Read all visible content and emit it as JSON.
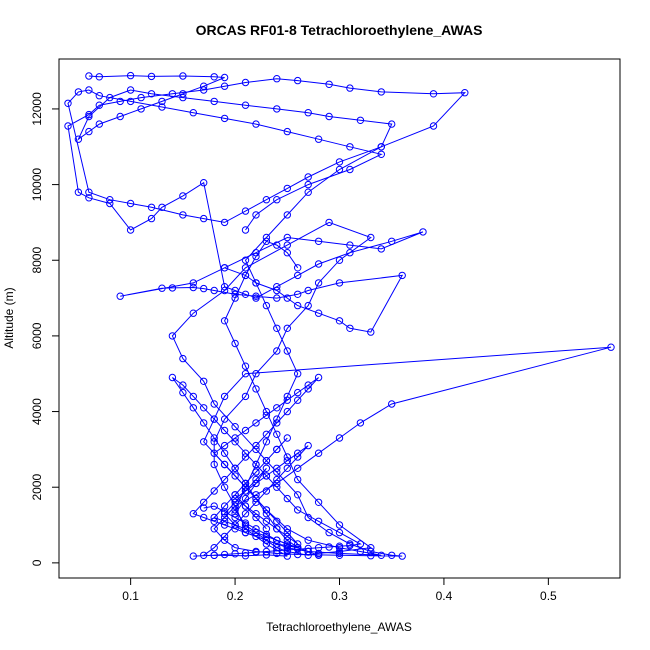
{
  "chart_data": {
    "type": "line",
    "title": "ORCAS RF01-8 Tetrachloroethylene_AWAS",
    "xlabel": "Tetrachloroethylene_AWAS",
    "ylabel": "Altitude (m)",
    "xlim": [
      0.0314,
      0.5686
    ],
    "ylim": [
      -400,
      13320
    ],
    "xticks": [
      0.1,
      0.2,
      0.3,
      0.4,
      0.5
    ],
    "xtick_labels": [
      "0.1",
      "0.2",
      "0.3",
      "0.4",
      "0.5"
    ],
    "yticks": [
      0,
      2000,
      4000,
      6000,
      8000,
      10000,
      12000
    ],
    "ytick_labels": [
      "0",
      "2000",
      "4000",
      "6000",
      "8000",
      "10000",
      "12000"
    ],
    "grid": false,
    "legend": "none",
    "color": "#0000ff",
    "marker": "open-circle",
    "series": [
      {
        "x": [
          0.16,
          0.18,
          0.21,
          0.23,
          0.25,
          0.23,
          0.21,
          0.2,
          0.19,
          0.18,
          0.18,
          0.19,
          0.21,
          0.22,
          0.24,
          0.25,
          0.27,
          0.28,
          0.3,
          0.33,
          0.29,
          0.25,
          0.21,
          0.19,
          0.16,
          0.14,
          0.15,
          0.17,
          0.18,
          0.2,
          0.22,
          0.24,
          0.26,
          0.27,
          0.29,
          0.31,
          0.33,
          0.35,
          0.36,
          0.33,
          0.3,
          0.28,
          0.26,
          0.24,
          0.22,
          0.2,
          0.19,
          0.18,
          0.19,
          0.2,
          0.22,
          0.24,
          0.26,
          0.28,
          0.3,
          0.32,
          0.35,
          0.56,
          0.21,
          0.19,
          0.18,
          0.17,
          0.19,
          0.21,
          0.23,
          0.25,
          0.27,
          0.3,
          0.32,
          0.34,
          0.3,
          0.27,
          0.25,
          0.23,
          0.21,
          0.2,
          0.19,
          0.2,
          0.21,
          0.22,
          0.23,
          0.22,
          0.21,
          0.2
        ],
        "y": [
          180,
          200,
          190,
          210,
          180,
          500,
          900,
          1500,
          2000,
          2600,
          3200,
          3800,
          4400,
          5000,
          5600,
          6200,
          6800,
          7400,
          8000,
          8600,
          9000,
          8400,
          7800,
          7200,
          6600,
          6000,
          5400,
          4800,
          4200,
          3600,
          3000,
          2400,
          1800,
          1200,
          800,
          500,
          300,
          200,
          180,
          190,
          200,
          210,
          220,
          250,
          300,
          400,
          600,
          900,
          1200,
          1500,
          1800,
          2100,
          2500,
          2900,
          3300,
          3700,
          4200,
          5700,
          5000,
          4400,
          3800,
          3200,
          2600,
          2000,
          1400,
          900,
          600,
          400,
          300,
          200,
          250,
          300,
          400,
          600,
          800,
          1000,
          1300,
          1600,
          1900,
          2200,
          2500,
          2100,
          1700,
          1300
        ]
      },
      {
        "x": [
          0.19,
          0.21,
          0.22,
          0.24,
          0.25,
          0.26,
          0.28,
          0.3,
          0.31,
          0.33,
          0.36,
          0.3,
          0.27,
          0.26,
          0.24,
          0.22,
          0.2,
          0.18,
          0.17,
          0.16,
          0.14,
          0.13,
          0.09,
          0.16,
          0.19,
          0.22,
          0.25,
          0.28,
          0.31,
          0.34,
          0.38,
          0.35,
          0.31,
          0.28,
          0.26,
          0.24,
          0.22,
          0.21,
          0.2,
          0.19,
          0.17,
          0.15,
          0.13,
          0.12,
          0.1,
          0.08,
          0.06,
          0.05,
          0.04,
          0.06,
          0.07,
          0.09,
          0.11,
          0.14,
          0.17,
          0.19,
          0.21,
          0.24,
          0.26,
          0.29,
          0.31,
          0.34,
          0.39,
          0.42,
          0.39,
          0.34,
          0.3,
          0.27,
          0.25,
          0.23,
          0.21,
          0.19,
          0.17,
          0.15,
          0.12,
          0.1,
          0.08,
          0.06,
          0.04,
          0.05,
          0.06,
          0.07,
          0.1,
          0.13,
          0.16,
          0.19,
          0.22,
          0.25,
          0.28,
          0.31,
          0.34,
          0.31,
          0.27,
          0.24,
          0.22,
          0.21
        ],
        "y": [
          7800,
          7600,
          7400,
          7200,
          7000,
          6800,
          6600,
          6400,
          6200,
          6100,
          7600,
          7400,
          7200,
          7100,
          7000,
          7050,
          7100,
          7200,
          7250,
          7280,
          7270,
          7260,
          7050,
          7400,
          7800,
          8200,
          8600,
          8500,
          8400,
          8300,
          8750,
          8500,
          8200,
          7900,
          7600,
          7300,
          7000,
          7100,
          7200,
          7300,
          10050,
          9700,
          9400,
          9100,
          8800,
          9500,
          9650,
          9800,
          11550,
          11850,
          12100,
          12200,
          12300,
          12400,
          12500,
          12600,
          12700,
          12800,
          12750,
          12650,
          12550,
          12450,
          12400,
          12430,
          11550,
          11000,
          10600,
          10200,
          9900,
          9600,
          9300,
          9000,
          9100,
          9200,
          9400,
          9500,
          9600,
          9800,
          12150,
          12450,
          12500,
          12350,
          12200,
          12050,
          11900,
          11750,
          11600,
          11400,
          11200,
          11000,
          10800,
          10400,
          10000,
          9600,
          9200,
          8800
        ]
      },
      {
        "x": [
          0.06,
          0.07,
          0.1,
          0.12,
          0.15,
          0.18,
          0.19,
          0.17,
          0.15,
          0.13,
          0.11,
          0.09,
          0.07,
          0.06,
          0.05,
          0.06,
          0.08,
          0.1,
          0.12,
          0.15,
          0.18,
          0.21,
          0.24,
          0.27,
          0.29,
          0.32,
          0.35,
          0.34,
          0.3,
          0.27,
          0.25,
          0.23,
          0.21,
          0.22,
          0.23,
          0.24,
          0.25,
          0.26,
          0.25,
          0.24,
          0.23,
          0.22,
          0.21,
          0.2,
          0.21,
          0.22,
          0.23,
          0.24,
          0.25,
          0.27,
          0.28,
          0.3,
          0.33,
          0.3,
          0.28,
          0.26,
          0.25,
          0.24,
          0.23,
          0.22,
          0.21,
          0.2,
          0.19,
          0.2,
          0.21,
          0.22,
          0.23,
          0.24,
          0.25,
          0.26
        ],
        "y": [
          12870,
          12850,
          12880,
          12860,
          12870,
          12850,
          12830,
          12600,
          12400,
          12200,
          12000,
          11800,
          11600,
          11400,
          11200,
          11800,
          12300,
          12500,
          12400,
          12300,
          12200,
          12100,
          12000,
          11900,
          11800,
          11700,
          11600,
          11000,
          10400,
          9800,
          9200,
          8600,
          8000,
          7400,
          6800,
          6200,
          5600,
          5000,
          4400,
          3800,
          3200,
          2600,
          2000,
          1400,
          1000,
          800,
          600,
          400,
          300,
          200,
          250,
          300,
          400,
          1000,
          1600,
          2200,
          2800,
          3400,
          4000,
          4600,
          5200,
          5800,
          6400,
          7000,
          7600,
          8100,
          8500,
          8400,
          8200,
          7800
        ]
      },
      {
        "x": [
          0.17,
          0.18,
          0.19,
          0.2,
          0.21,
          0.22,
          0.23,
          0.24,
          0.25,
          0.26,
          0.25,
          0.24,
          0.23,
          0.22,
          0.21,
          0.2,
          0.19,
          0.18,
          0.17,
          0.16,
          0.17,
          0.18,
          0.19,
          0.2,
          0.21,
          0.22,
          0.23,
          0.24,
          0.25,
          0.26,
          0.27,
          0.28,
          0.27,
          0.26,
          0.25,
          0.24,
          0.23,
          0.22,
          0.21,
          0.2,
          0.19,
          0.18,
          0.19,
          0.2,
          0.21,
          0.22,
          0.23,
          0.24,
          0.25,
          0.26,
          0.25,
          0.24,
          0.23,
          0.22,
          0.21,
          0.2,
          0.21,
          0.22,
          0.23,
          0.24,
          0.25,
          0.26,
          0.27,
          0.26,
          0.25,
          0.24,
          0.23,
          0.22,
          0.21,
          0.2,
          0.19,
          0.18,
          0.17
        ],
        "y": [
          1450,
          1500,
          1350,
          1200,
          1050,
          900,
          750,
          600,
          500,
          400,
          450,
          500,
          600,
          700,
          800,
          900,
          1000,
          1100,
          1200,
          1300,
          1600,
          1900,
          2200,
          2500,
          2800,
          3100,
          3400,
          3700,
          4000,
          4300,
          4600,
          4900,
          4700,
          4500,
          4300,
          4100,
          3900,
          3700,
          3500,
          3300,
          3100,
          2900,
          2600,
          2300,
          2000,
          1700,
          1400,
          1100,
          800,
          500,
          700,
          900,
          1100,
          1300,
          1500,
          1700,
          1900,
          2100,
          2300,
          2500,
          2700,
          2900,
          3100,
          2800,
          2500,
          2200,
          1900,
          1600,
          1300,
          1000,
          700,
          400,
          200
        ]
      },
      {
        "x": [
          0.18,
          0.19,
          0.2,
          0.21,
          0.22,
          0.23,
          0.24,
          0.25,
          0.26,
          0.27,
          0.28,
          0.29,
          0.3,
          0.31,
          0.32,
          0.3,
          0.28,
          0.26,
          0.25,
          0.24,
          0.23,
          0.22,
          0.21,
          0.2,
          0.19,
          0.18,
          0.17,
          0.16,
          0.15,
          0.14,
          0.15,
          0.16,
          0.17,
          0.18,
          0.19,
          0.2,
          0.21,
          0.22,
          0.23,
          0.24,
          0.25,
          0.26,
          0.27,
          0.28,
          0.27,
          0.26,
          0.25,
          0.24,
          0.23,
          0.22,
          0.21,
          0.2,
          0.19,
          0.18,
          0.19,
          0.2,
          0.21,
          0.22,
          0.23,
          0.24,
          0.25,
          0.24,
          0.23,
          0.22,
          0.21,
          0.2,
          0.21,
          0.22,
          0.23
        ],
        "y": [
          200,
          220,
          240,
          260,
          280,
          300,
          320,
          340,
          360,
          380,
          400,
          420,
          440,
          460,
          500,
          800,
          1100,
          1400,
          1700,
          2000,
          2300,
          2600,
          2900,
          3200,
          3500,
          3800,
          4100,
          4400,
          4700,
          4900,
          4500,
          4100,
          3700,
          3300,
          2900,
          2500,
          2100,
          1700,
          1300,
          900,
          600,
          400,
          300,
          200,
          300,
          400,
          500,
          600,
          700,
          800,
          900,
          1000,
          1100,
          1200,
          1500,
          1800,
          2100,
          2400,
          2700,
          3000,
          3300,
          3000,
          2700,
          2400,
          2100,
          1800,
          1500,
          1200,
          900
        ]
      }
    ]
  }
}
